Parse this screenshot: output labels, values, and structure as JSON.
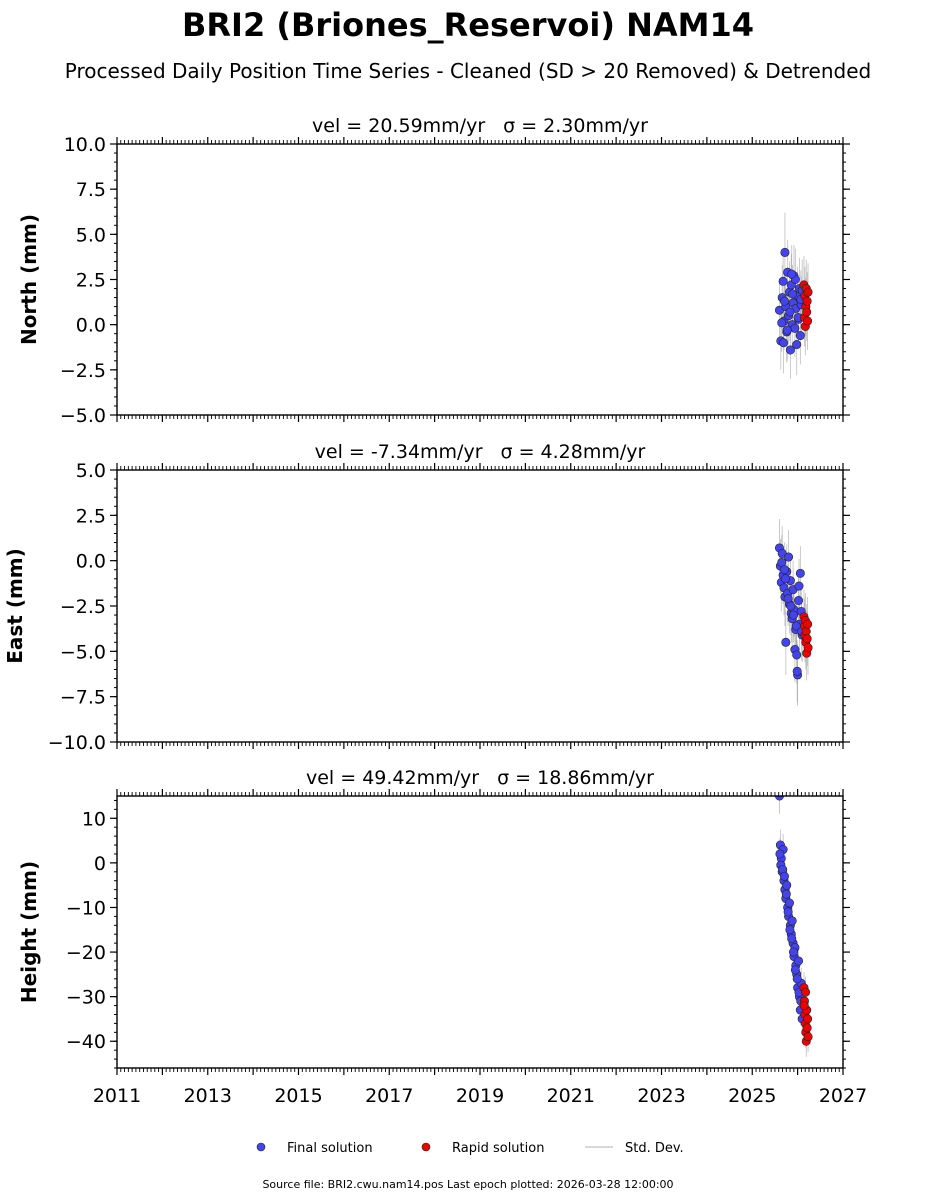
{
  "figure": {
    "title": "BRI2 (Briones_Reservoi) NAM14",
    "subtitle": "Processed Daily Position Time Series - Cleaned (SD > 20 Removed) & Detrended",
    "footer": "Source file: BRI2.cwu.nam14.pos  Last epoch plotted: 2026-03-28 12:00:00",
    "legend": [
      {
        "label": "Final solution",
        "color": "#4444ee"
      },
      {
        "label": "Rapid solution",
        "color": "#ee0000"
      },
      {
        "label": "Std. Dev.",
        "color": "#cccccc"
      }
    ],
    "colors": {
      "final": "#4444ee",
      "rapid": "#ee0000",
      "stddev": "#888888"
    }
  },
  "chart_data": [
    {
      "type": "scatter",
      "ylabel": "North (mm)",
      "panel_title_vel": "vel = 20.59mm/yr",
      "panel_title_sigma": "σ = 2.30mm/yr",
      "xlim": [
        2011,
        2027
      ],
      "ylim": [
        -5,
        10
      ],
      "yticks": [
        -5,
        -2.5,
        0,
        2.5,
        5,
        7.5,
        10
      ],
      "ytick_labels": [
        "−5.0",
        "−2.5",
        "0.0",
        "2.5",
        "5.0",
        "7.5",
        "10.0"
      ],
      "xticks": [
        2011,
        2013,
        2015,
        2017,
        2019,
        2021,
        2023,
        2025,
        2027
      ],
      "xtick_labels": [],
      "series": [
        {
          "name": "Final solution",
          "x": [
            2025.6,
            2025.63,
            2025.66,
            2025.68,
            2025.7,
            2025.72,
            2025.74,
            2025.76,
            2025.78,
            2025.8,
            2025.82,
            2025.84,
            2025.86,
            2025.88,
            2025.9,
            2025.92,
            2025.94,
            2025.96,
            2025.98,
            2026.0,
            2026.02,
            2026.04,
            2026.06,
            2026.08,
            2026.1,
            2025.65,
            2025.71,
            2025.77,
            2025.83,
            2025.89,
            2025.95,
            2026.01,
            2026.07,
            2025.69,
            2025.87
          ],
          "y": [
            0.8,
            -0.9,
            1.5,
            2.4,
            0.2,
            4.0,
            1.0,
            -0.4,
            2.9,
            0.5,
            1.8,
            -1.4,
            2.2,
            0.0,
            1.2,
            2.7,
            -0.2,
            0.9,
            -1.1,
            1.6,
            0.3,
            2.0,
            -0.6,
            1.1,
            1.9,
            0.1,
            1.3,
            -0.3,
            0.7,
            1.7,
            2.5,
            0.4,
            1.4,
            -1.0,
            2.8
          ],
          "err": [
            1.7,
            1.6,
            1.8,
            1.7,
            1.6,
            2.2,
            1.6,
            1.7,
            1.8,
            1.6,
            1.7,
            1.6,
            1.7,
            1.6,
            1.6,
            1.7,
            1.6,
            1.6,
            1.7,
            1.6,
            1.6,
            1.7,
            1.6,
            1.6,
            1.7,
            1.6,
            1.6,
            1.7,
            1.6,
            1.6,
            1.7,
            1.6,
            1.6,
            1.7,
            1.6
          ]
        },
        {
          "name": "Rapid solution",
          "x": [
            2026.14,
            2026.15,
            2026.16,
            2026.17,
            2026.18,
            2026.19,
            2026.2,
            2026.21,
            2026.22,
            2026.23
          ],
          "y": [
            2.2,
            0.4,
            1.6,
            -0.1,
            1.0,
            2.0,
            0.7,
            1.3,
            0.2,
            1.8
          ],
          "err": [
            1.6,
            1.6,
            1.6,
            1.6,
            1.6,
            1.6,
            1.6,
            1.6,
            1.6,
            1.6
          ]
        }
      ]
    },
    {
      "type": "scatter",
      "ylabel": "East (mm)",
      "panel_title_vel": "vel = -7.34mm/yr",
      "panel_title_sigma": "σ = 4.28mm/yr",
      "xlim": [
        2011,
        2027
      ],
      "ylim": [
        -10,
        5
      ],
      "yticks": [
        -10,
        -7.5,
        -5,
        -2.5,
        0,
        2.5,
        5
      ],
      "ytick_labels": [
        "−10.0",
        "−7.5",
        "−5.0",
        "−2.5",
        "0.0",
        "2.5",
        "5.0"
      ],
      "xticks": [
        2011,
        2013,
        2015,
        2017,
        2019,
        2021,
        2023,
        2025,
        2027
      ],
      "xtick_labels": [],
      "series": [
        {
          "name": "Final solution",
          "x": [
            2025.6,
            2025.62,
            2025.64,
            2025.66,
            2025.68,
            2025.7,
            2025.72,
            2025.74,
            2025.76,
            2025.78,
            2025.8,
            2025.82,
            2025.84,
            2025.86,
            2025.88,
            2025.9,
            2025.92,
            2025.94,
            2025.96,
            2025.98,
            2026.0,
            2026.02,
            2026.04,
            2026.06,
            2026.08,
            2026.1,
            2025.65,
            2025.73,
            2025.79,
            2025.85,
            2025.91,
            2025.97,
            2026.03,
            2026.09,
            2025.71,
            2025.99
          ],
          "y": [
            0.7,
            -0.3,
            -1.2,
            0.4,
            -0.8,
            -1.5,
            -2.0,
            -4.5,
            -0.6,
            -1.8,
            0.2,
            -2.4,
            -1.1,
            -2.9,
            -3.2,
            -1.6,
            -2.7,
            -4.9,
            -3.8,
            -5.2,
            -6.3,
            -2.2,
            -3.5,
            -0.7,
            -2.8,
            -4.1,
            -0.1,
            -1.0,
            -2.1,
            -2.5,
            -3.0,
            -3.6,
            -1.4,
            -3.9,
            -0.5,
            -6.1
          ],
          "err": [
            1.6,
            1.5,
            1.6,
            1.5,
            1.6,
            1.5,
            1.6,
            1.8,
            1.5,
            1.6,
            1.5,
            1.6,
            1.5,
            1.6,
            1.5,
            1.6,
            1.5,
            1.8,
            1.6,
            1.6,
            1.7,
            1.5,
            1.6,
            1.5,
            1.6,
            1.5,
            1.5,
            1.6,
            1.5,
            1.6,
            1.5,
            1.6,
            1.5,
            1.6,
            1.5,
            1.7
          ]
        },
        {
          "name": "Rapid solution",
          "x": [
            2026.14,
            2026.15,
            2026.16,
            2026.17,
            2026.18,
            2026.19,
            2026.2,
            2026.21,
            2026.22,
            2026.23
          ],
          "y": [
            -3.1,
            -3.6,
            -4.1,
            -3.3,
            -4.5,
            -3.9,
            -5.1,
            -4.3,
            -3.5,
            -4.8
          ],
          "err": [
            1.5,
            1.5,
            1.5,
            1.5,
            1.5,
            1.5,
            1.5,
            1.5,
            1.5,
            1.5
          ]
        }
      ]
    },
    {
      "type": "scatter",
      "ylabel": "Height (mm)",
      "panel_title_vel": "vel = 49.42mm/yr",
      "panel_title_sigma": "σ = 18.86mm/yr",
      "xlim": [
        2011,
        2027
      ],
      "ylim": [
        -46,
        15
      ],
      "yticks": [
        -40,
        -30,
        -20,
        -10,
        0,
        10
      ],
      "ytick_labels": [
        "−40",
        "−30",
        "−20",
        "−10",
        "0",
        "10"
      ],
      "xticks": [
        2011,
        2013,
        2015,
        2017,
        2019,
        2021,
        2023,
        2025,
        2027
      ],
      "xtick_labels": [
        "2011",
        "2013",
        "2015",
        "2017",
        "2019",
        "2021",
        "2023",
        "2025",
        "2027"
      ],
      "series": [
        {
          "name": "Final solution",
          "x": [
            2025.6,
            2025.62,
            2025.64,
            2025.66,
            2025.68,
            2025.7,
            2025.72,
            2025.74,
            2025.76,
            2025.78,
            2025.8,
            2025.82,
            2025.84,
            2025.86,
            2025.88,
            2025.9,
            2025.92,
            2025.94,
            2025.96,
            2025.98,
            2026.0,
            2026.02,
            2026.04,
            2026.06,
            2026.08,
            2026.1,
            2025.63,
            2025.67,
            2025.71,
            2025.75,
            2025.79,
            2025.83,
            2025.87,
            2025.91,
            2025.95,
            2025.99,
            2026.03,
            2026.07,
            2025.61
          ],
          "y": [
            15,
            4,
            1,
            -2,
            3,
            -4,
            -6,
            -8,
            -5,
            -10,
            -12,
            -9,
            -14,
            -16,
            -13,
            -18,
            -21,
            -19,
            -23,
            -25,
            -28,
            -22,
            -30,
            -33,
            -27,
            -35,
            -0.5,
            -1.5,
            -3,
            -7,
            -11,
            -15,
            -17,
            -20,
            -24,
            -26,
            -29,
            -31,
            2
          ],
          "err": [
            4,
            3.5,
            3.5,
            3.5,
            3.5,
            3.5,
            3.5,
            3.5,
            3.5,
            3.5,
            3.5,
            3.5,
            3.5,
            3.5,
            3.5,
            3.5,
            3.5,
            3.5,
            3.5,
            3.5,
            3.5,
            3.5,
            3.5,
            3.5,
            3.5,
            3.5,
            3.5,
            3.5,
            3.5,
            3.5,
            3.5,
            3.5,
            3.5,
            3.5,
            3.5,
            3.5,
            3.5,
            3.5,
            3.5
          ]
        },
        {
          "name": "Rapid solution",
          "x": [
            2026.14,
            2026.15,
            2026.16,
            2026.17,
            2026.18,
            2026.19,
            2026.2,
            2026.21,
            2026.22,
            2026.23,
            2026.145,
            2026.175
          ],
          "y": [
            -28,
            -31,
            -34,
            -36,
            -38,
            -40,
            -33,
            -37,
            -35,
            -39,
            -32,
            -29
          ],
          "err": [
            3.5,
            3.5,
            3.5,
            3.5,
            3.5,
            3.5,
            3.5,
            3.5,
            3.5,
            3.5,
            3.5,
            3.5
          ]
        }
      ]
    }
  ]
}
